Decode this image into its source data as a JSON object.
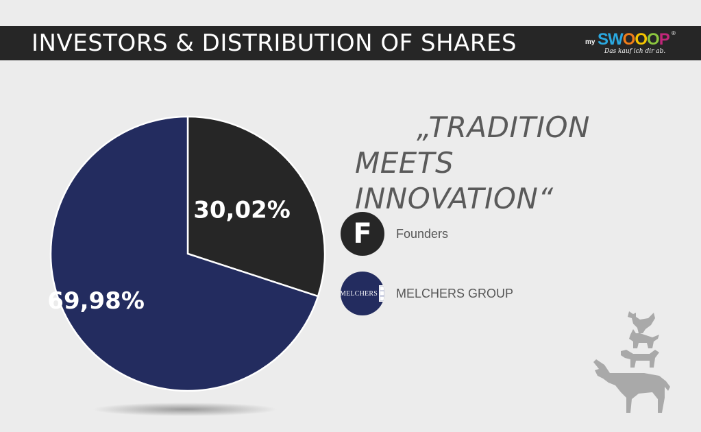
{
  "header": {
    "title": "INVESTORS & DISTRIBUTION OF SHARES"
  },
  "logo": {
    "prefix": "my",
    "letters": [
      "S",
      "W",
      "O",
      "O",
      "O",
      "P"
    ],
    "tagline": "Das kauf ich dir ab.",
    "registered": "®"
  },
  "quote": {
    "line1": "„TRADITION",
    "line2": "MEETS INNOVATION“"
  },
  "legend": [
    {
      "label": "Founders",
      "icon_text": "F",
      "color": "#262626"
    },
    {
      "label": "MELCHERS GROUP",
      "icon_text": "MELCHERS",
      "color": "#232c5f"
    }
  ],
  "chart_data": {
    "type": "pie",
    "labels": [
      "Founders",
      "MELCHERS GROUP"
    ],
    "values": [
      30.02,
      69.98
    ],
    "value_labels": [
      "30,02%",
      "69,98%"
    ],
    "colors": [
      "#262626",
      "#232c5f"
    ],
    "unit": "%"
  },
  "colors": {
    "header_bg": "#262626",
    "background": "#ececec",
    "accent_navy": "#232c5f",
    "logo_letters": [
      "#2aa8e0",
      "#2aa8e0",
      "#f07d1a",
      "#f5c400",
      "#8cc63f",
      "#c2267a"
    ]
  }
}
